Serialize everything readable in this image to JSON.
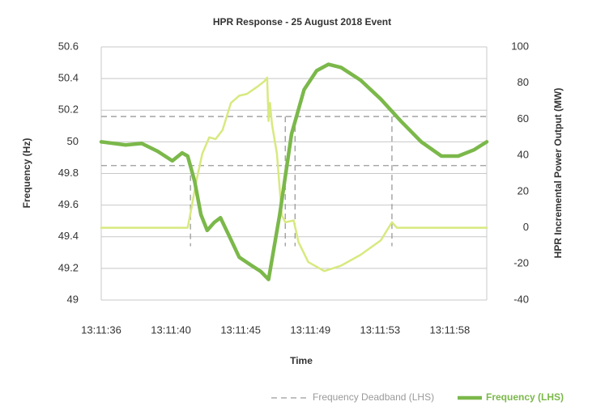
{
  "chart_data": {
    "type": "line",
    "title": "HPR Response - 25 August 2018 Event",
    "xlabel": "Time",
    "ylabel": "Frequency  (Hz)",
    "y2label": "HPR Incremental Power Output (MW)",
    "xlim": [
      0,
      5.53
    ],
    "xticks": [
      {
        "value": 0,
        "label": "13:11:36"
      },
      {
        "value": 1,
        "label": "13:11:40"
      },
      {
        "value": 2,
        "label": "13:11:45"
      },
      {
        "value": 3,
        "label": "13:11:49"
      },
      {
        "value": 4,
        "label": "13:11:53"
      },
      {
        "value": 5,
        "label": "13:11:58"
      }
    ],
    "ylim": [
      49,
      50.6
    ],
    "yticks": [
      49,
      49.2,
      49.4,
      49.6,
      49.8,
      50,
      50.2,
      50.4,
      50.6
    ],
    "y2lim": [
      -40,
      100
    ],
    "y2ticks": [
      -40,
      -20,
      0,
      20,
      40,
      60,
      80,
      100
    ],
    "grid": true,
    "deadband": {
      "name": "Frequency Deadband (LHS)",
      "color": "#9a9a9a",
      "levels": [
        50.16,
        49.85
      ],
      "drops": [
        {
          "x": 1.28,
          "from": 49.85,
          "to": 49.34
        },
        {
          "x": 2.64,
          "from": 50.16,
          "to": 49.34
        },
        {
          "x": 2.78,
          "from": 50.16,
          "to": 49.34
        },
        {
          "x": 4.17,
          "from": 50.16,
          "to": 49.34
        }
      ]
    },
    "series": [
      {
        "color": "#d8e97f",
        "axis": "y2",
        "x": [
          0,
          1.24,
          1.29,
          1.36,
          1.45,
          1.55,
          1.64,
          1.74,
          1.86,
          1.98,
          2.09,
          2.24,
          2.34,
          2.38,
          2.4,
          2.42,
          2.45,
          2.52,
          2.59,
          2.64,
          2.76,
          2.83,
          2.97,
          3.2,
          3.44,
          3.72,
          4.01,
          4.17,
          4.24,
          5.53
        ],
        "values": [
          0,
          0,
          10,
          25,
          41,
          50,
          49,
          54,
          69,
          73,
          74,
          78,
          81,
          83,
          59,
          69,
          57,
          41,
          7,
          3,
          4,
          -8,
          -19,
          -24,
          -21,
          -15,
          -7,
          3,
          0,
          0
        ]
      },
      {
        "name": "Frequency (LHS)",
        "color": "#7bb84a",
        "x": [
          0,
          0.35,
          0.58,
          0.81,
          1.02,
          1.16,
          1.24,
          1.34,
          1.43,
          1.52,
          1.62,
          1.71,
          1.83,
          1.98,
          2.15,
          2.29,
          2.4,
          2.56,
          2.73,
          2.91,
          3.09,
          3.26,
          3.44,
          3.72,
          4.01,
          4.3,
          4.59,
          4.88,
          5.12,
          5.35,
          5.53
        ],
        "values": [
          50.0,
          49.98,
          49.99,
          49.94,
          49.88,
          49.93,
          49.91,
          49.75,
          49.54,
          49.44,
          49.49,
          49.52,
          49.41,
          49.27,
          49.22,
          49.18,
          49.13,
          49.54,
          50.05,
          50.33,
          50.45,
          50.49,
          50.47,
          50.39,
          50.27,
          50.13,
          50.0,
          49.91,
          49.91,
          49.95,
          50.0
        ]
      }
    ]
  }
}
